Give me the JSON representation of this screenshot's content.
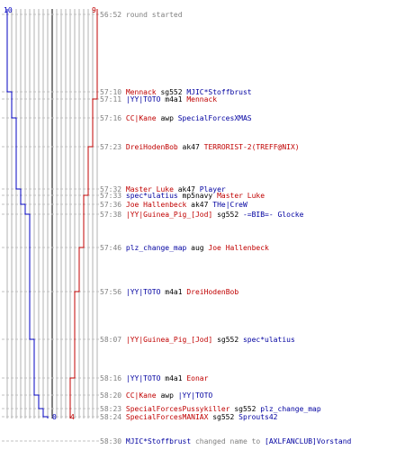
{
  "scores": {
    "blue_top": "10",
    "red_top": "9",
    "blue_bottom": "0",
    "red_bottom": "4"
  },
  "colors": {
    "blue": "#0000c0",
    "red": "#c00000",
    "grid": "#b0b0b0",
    "dash": "#c0c0c0",
    "black": "#000000"
  },
  "events": [
    {
      "time": "56:52",
      "kind": "message",
      "text": "round started"
    },
    {
      "time": "57:10",
      "killer": "Mennack",
      "killer_team": "red",
      "weapon": "sg552",
      "victim": "MJIC*Stoffbrust",
      "victim_team": "blue"
    },
    {
      "time": "57:11",
      "killer": "|YY|TOTO",
      "killer_team": "blue",
      "weapon": "m4a1",
      "victim": "Mennack",
      "victim_team": "red"
    },
    {
      "time": "57:16",
      "killer": "CC|Kane",
      "killer_team": "red",
      "weapon": "awp",
      "victim": "SpecialForcesXMAS",
      "victim_team": "blue"
    },
    {
      "time": "57:23",
      "killer": "DreiHodenBob",
      "killer_team": "red",
      "weapon": "ak47",
      "victim": "TERRORIST-2(TREFF@NIX)",
      "victim_team": "red"
    },
    {
      "time": "57:32",
      "killer": "Master Luke",
      "killer_team": "red",
      "weapon": "ak47",
      "victim": "Player",
      "victim_team": "blue"
    },
    {
      "time": "57:33",
      "killer": "spec*ulatius",
      "killer_team": "blue",
      "weapon": "mp5navy",
      "victim": "Master Luke",
      "victim_team": "red"
    },
    {
      "time": "57:36",
      "killer": "Joe Hallenbeck",
      "killer_team": "red",
      "weapon": "ak47",
      "victim": "THe|CreW",
      "victim_team": "blue"
    },
    {
      "time": "57:38",
      "killer": "|YY|Guinea_Pig_[Jod]",
      "killer_team": "red",
      "weapon": "sg552",
      "victim": "-=BIB=- Glocke",
      "victim_team": "blue"
    },
    {
      "time": "57:46",
      "killer": "plz_change_map",
      "killer_team": "blue",
      "weapon": "aug",
      "victim": "Joe Hallenbeck",
      "victim_team": "red"
    },
    {
      "time": "57:56",
      "killer": "|YY|TOTO",
      "killer_team": "blue",
      "weapon": "m4a1",
      "victim": "DreiHodenBob",
      "victim_team": "red"
    },
    {
      "time": "58:07",
      "killer": "|YY|Guinea_Pig_[Jod]",
      "killer_team": "red",
      "weapon": "sg552",
      "victim": "spec*ulatius",
      "victim_team": "blue"
    },
    {
      "time": "58:16",
      "killer": "|YY|TOTO",
      "killer_team": "blue",
      "weapon": "m4a1",
      "victim": "Eonar",
      "victim_team": "red"
    },
    {
      "time": "58:20",
      "killer": "CC|Kane",
      "killer_team": "red",
      "weapon": "awp",
      "victim": "|YY|TOTO",
      "victim_team": "blue"
    },
    {
      "time": "58:23",
      "killer": "SpecialForcesPussykiller",
      "killer_team": "red",
      "weapon": "sg552",
      "victim": "plz_change_map",
      "victim_team": "blue"
    },
    {
      "time": "58:24",
      "killer": "SpecialForcesMANIAX",
      "killer_team": "red",
      "weapon": "sg552",
      "victim": "Sprouts42",
      "victim_team": "blue"
    },
    {
      "time": "58:30",
      "kind": "rename",
      "player": "MJIC*Stoffbrust",
      "player_team": "blue",
      "text": "changed name to",
      "new_name": "[AXLFANCLUB]Vorstand",
      "new_team": "blue"
    }
  ]
}
